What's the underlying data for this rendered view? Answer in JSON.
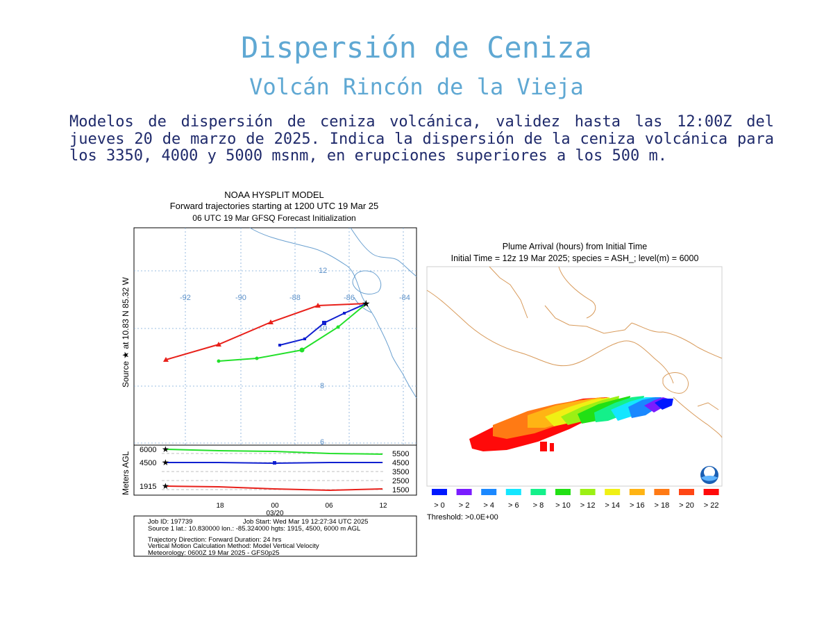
{
  "header": {
    "title": "Dispersión de Ceniza",
    "subtitle": "Volcán Rincón de la Vieja",
    "description": "Modelos de dispersión de ceniza volcánica, validez hasta las 12:00Z del jueves 20 de marzo de 2025. Indica la dispersión de la ceniza volcánica para los 3350, 4000 y 5000 msnm, en erupciones superiores a los 500 m."
  },
  "colors": {
    "title": "#5fa8d3",
    "text": "#1f2a6b",
    "traj_red": "#e8201a",
    "traj_blue": "#1020d0",
    "traj_green": "#22e02a",
    "coast": "#6aa0d0",
    "coast_right": "#d89a5a"
  },
  "hysplit": {
    "title_line1": "NOAA HYSPLIT MODEL",
    "title_line2": "Forward trajectories starting at 1200 UTC 19 Mar 25",
    "title_line3": "06 UTC 19 Mar    GFSQ  Forecast Initialization",
    "side_label": "Source ★  at   10.83 N   85.32 W",
    "lon_labels": [
      "-92",
      "-90",
      "-88",
      "-86",
      "-84"
    ],
    "lat_labels": [
      "12",
      "10",
      "8",
      "6"
    ],
    "agl_label": "Meters AGL",
    "agl_left": [
      "6000",
      "4500",
      "1915"
    ],
    "agl_right": [
      "5500",
      "4500",
      "3500",
      "2500",
      "1500"
    ],
    "time_ticks": [
      "18",
      "00",
      "06",
      "12"
    ],
    "date_label": "03/20",
    "info": {
      "line1a": "Job ID: 197739",
      "line1b": "Job Start: Wed Mar 19 12:27:34 UTC 2025",
      "line2": "Source 1 lat.: 10.830000  lon.: -85.324000  hgts: 1915, 4500, 6000 m AGL",
      "line3": "Trajectory Direction: Forward      Duration: 24 hrs",
      "line4": "Vertical Motion Calculation Method:      Model Vertical Velocity",
      "line5": "Meteorology: 0600Z 19 Mar 2025 - GFS0p25"
    }
  },
  "plume": {
    "title_line1": "Plume Arrival (hours) from Initial Time",
    "title_line2": "Initial Time = 12z 19 Mar 2025;  species = ASH_;  level(m) =  6000",
    "legend": [
      {
        "label": "> 0",
        "color": "#0018ff"
      },
      {
        "label": "> 2",
        "color": "#7a1cff"
      },
      {
        "label": "> 4",
        "color": "#1a88ff"
      },
      {
        "label": "> 6",
        "color": "#14e6ff"
      },
      {
        "label": "> 8",
        "color": "#14f08a"
      },
      {
        "label": "> 10",
        "color": "#22e014"
      },
      {
        "label": "> 12",
        "color": "#9cf014"
      },
      {
        "label": "> 14",
        "color": "#f0f014"
      },
      {
        "label": "> 16",
        "color": "#ffb414"
      },
      {
        "label": "> 18",
        "color": "#ff7a14"
      },
      {
        "label": "> 20",
        "color": "#ff4614"
      },
      {
        "label": "> 22",
        "color": "#ff0a0a"
      }
    ],
    "threshold": "Threshold: >0.0E+00"
  }
}
